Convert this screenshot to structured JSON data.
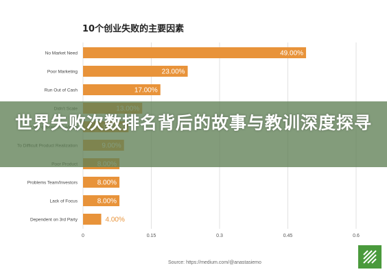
{
  "chart_data": {
    "type": "bar",
    "orientation": "horizontal",
    "title": "10个创业失败的主要因素",
    "categories": [
      "No Market Need",
      "Poor Marketing",
      "Run Out of Cash",
      "Didn't Scale",
      "Lack of Business Model",
      "To Difficult Product Realization",
      "Poor Product",
      "Problems Team/Investors",
      "Lack of Focus",
      "Dependent on 3rd Party"
    ],
    "values": [
      0.49,
      0.23,
      0.17,
      0.13,
      0.1,
      0.09,
      0.08,
      0.08,
      0.08,
      0.04
    ],
    "data_labels": [
      "49.00%",
      "23.00%",
      "17.00%",
      "13.00%",
      "10.00%",
      "9.00%",
      "8.00%",
      "8.00%",
      "8.00%",
      "4.00%"
    ],
    "xticks": [
      "0",
      "0.15",
      "0.3",
      "0.45",
      "0.6"
    ],
    "xlim": [
      0,
      0.6
    ],
    "grid": "vertical",
    "bar_color": "#e8933a",
    "source": "Source: https://medium.com/@anastasiemo"
  },
  "overlay": {
    "headline": "世界失败次数排名背后的故事与教训深度探寻",
    "band_color": "#608056"
  },
  "logo": {
    "icon": "green-corner-logo",
    "color": "#4a9a3c"
  }
}
